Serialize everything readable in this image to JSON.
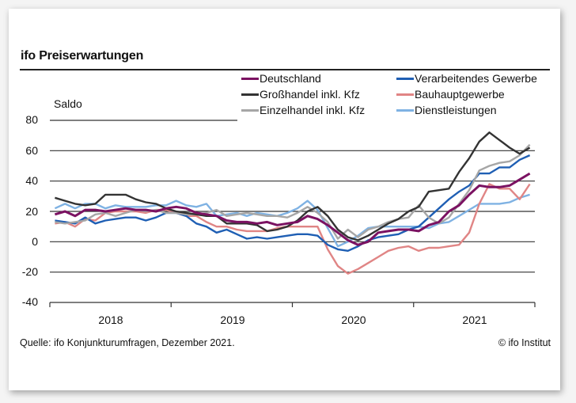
{
  "header": {
    "title": "ifo Preiserwartungen",
    "unit_label": "Saldo"
  },
  "footer": {
    "source": "Quelle: ifo Konjunkturumfragen, Dezember 2021.",
    "copyright": "© ifo Institut"
  },
  "chart_data": {
    "type": "line",
    "title": "ifo Preiserwartungen",
    "xlabel": "",
    "ylabel": "Saldo",
    "ylim": [
      -40,
      80
    ],
    "yticks": [
      "80",
      "60",
      "40",
      "20",
      "0",
      "-20",
      "-40"
    ],
    "ytick_values": [
      80,
      60,
      40,
      20,
      0,
      -20,
      -40
    ],
    "xtick_labels": [
      "2018",
      "2019",
      "2020",
      "2021"
    ],
    "x_period": "monthly, Jan 2018 – Dec 2021",
    "grid": true,
    "legend_position": "top-right",
    "series": [
      {
        "name": "Deutschland",
        "color": "#7b1262",
        "values": [
          18,
          20,
          17,
          21,
          21,
          20,
          21,
          22,
          21,
          21,
          20,
          22,
          23,
          22,
          19,
          18,
          17,
          14,
          13,
          13,
          12,
          13,
          11,
          12,
          13,
          17,
          15,
          11,
          6,
          1,
          -2,
          0,
          6,
          7,
          8,
          8,
          7,
          11,
          13,
          20,
          24,
          31,
          37,
          36,
          36,
          37,
          41,
          45
        ]
      },
      {
        "name": "Großhandel inkl. Kfz",
        "color": "#333333",
        "values": [
          29,
          27,
          25,
          24,
          25,
          31,
          31,
          31,
          28,
          26,
          25,
          22,
          20,
          19,
          18,
          17,
          17,
          12,
          12,
          12,
          11,
          7,
          8,
          10,
          14,
          20,
          23,
          17,
          8,
          3,
          1,
          4,
          8,
          12,
          15,
          20,
          23,
          33,
          34,
          35,
          46,
          55,
          66,
          72,
          67,
          62,
          58,
          62,
          63,
          58
        ]
      },
      {
        "name": "Einzelhandel inkl. Kfz",
        "color": "#a6a6a6",
        "values": [
          13,
          12,
          13,
          14,
          18,
          19,
          17,
          19,
          21,
          20,
          21,
          19,
          19,
          18,
          18,
          19,
          21,
          17,
          18,
          19,
          18,
          17,
          17,
          16,
          19,
          23,
          19,
          13,
          2,
          8,
          3,
          8,
          10,
          13,
          15,
          16,
          24,
          16,
          12,
          16,
          25,
          34,
          47,
          50,
          52,
          53,
          57,
          64
        ]
      },
      {
        "name": "Verarbeitendes Gewerbe",
        "color": "#1f5fb4",
        "values": [
          14,
          13,
          12,
          16,
          12,
          14,
          15,
          16,
          16,
          14,
          16,
          19,
          19,
          17,
          12,
          10,
          6,
          8,
          5,
          2,
          3,
          2,
          3,
          4,
          5,
          5,
          4,
          -2,
          -5,
          -6,
          -3,
          1,
          3,
          4,
          5,
          8,
          10,
          16,
          22,
          28,
          33,
          37,
          45,
          45,
          49,
          49,
          54,
          57,
          55
        ]
      },
      {
        "name": "Bauhauptgewerbe",
        "color": "#e08585",
        "values": [
          12,
          13,
          10,
          15,
          14,
          19,
          20,
          20,
          20,
          19,
          21,
          21,
          19,
          17,
          17,
          13,
          10,
          10,
          8,
          7,
          7,
          7,
          9,
          10,
          10,
          10,
          10,
          -5,
          -16,
          -21,
          -18,
          -14,
          -10,
          -6,
          -4,
          -3,
          -6,
          -4,
          -4,
          -3,
          -2,
          6,
          25,
          38,
          35,
          35,
          28,
          38,
          43,
          42
        ]
      },
      {
        "name": "Dienstleistungen",
        "color": "#7fb2e3",
        "values": [
          22,
          25,
          22,
          25,
          25,
          22,
          24,
          23,
          23,
          23,
          24,
          24,
          27,
          24,
          23,
          25,
          17,
          18,
          19,
          17,
          19,
          18,
          17,
          19,
          22,
          27,
          21,
          9,
          -3,
          0,
          4,
          9,
          10,
          10,
          10,
          10,
          10,
          9,
          12,
          13,
          17,
          21,
          25,
          25,
          25,
          26,
          29,
          31,
          32,
          34
        ]
      }
    ]
  },
  "legend": {
    "items": [
      {
        "label": "Deutschland",
        "color": "#7b1262"
      },
      {
        "label": "Großhandel inkl. Kfz",
        "color": "#333333"
      },
      {
        "label": "Einzelhandel inkl. Kfz",
        "color": "#a6a6a6"
      },
      {
        "label": "Verarbeitendes Gewerbe",
        "color": "#1f5fb4"
      },
      {
        "label": "Bauhauptgewerbe",
        "color": "#e08585"
      },
      {
        "label": "Dienstleistungen",
        "color": "#7fb2e3"
      }
    ]
  }
}
